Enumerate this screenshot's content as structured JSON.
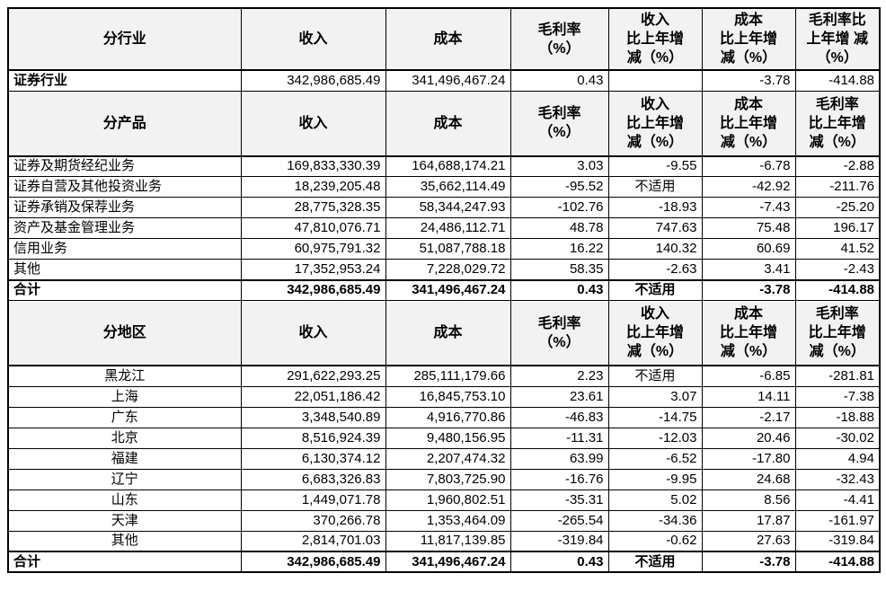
{
  "colors": {
    "header_background": "#f2f2f2",
    "border": "#000000",
    "text": "#000000",
    "page_background": "#ffffff"
  },
  "not_applicable_text": "不适用",
  "sections": [
    {
      "name": "by-industry",
      "header": [
        "分行业",
        "收入",
        "成本",
        "毛利率\n（%）",
        "收入\n比上年增\n减（%）",
        "成本\n比上年增\n减（%）",
        "毛利率比\n上年增 减\n（%）"
      ],
      "rows": [
        {
          "label": "证券行业",
          "align": "left",
          "label_bold": true,
          "row_bold": false,
          "thick_top": true,
          "values": [
            "342,986,685.49",
            "341,496,467.24",
            "0.43",
            "",
            "-3.78",
            "-414.88"
          ]
        }
      ]
    },
    {
      "name": "by-product",
      "header": [
        "分产品",
        "收入",
        "成本",
        "毛利率\n（%）",
        "收入\n比上年增\n减（%）",
        "成本\n比上年增\n减（%）",
        "毛利率\n比上年增\n减（%）"
      ],
      "rows": [
        {
          "label": "证券及期货经纪业务",
          "align": "left",
          "label_bold": false,
          "row_bold": false,
          "thick_top": true,
          "values": [
            "169,833,330.39",
            "164,688,174.21",
            "3.03",
            "-9.55",
            "-6.78",
            "-2.88"
          ]
        },
        {
          "label": "证券自营及其他投资业务",
          "align": "left",
          "label_bold": false,
          "row_bold": false,
          "thick_top": false,
          "values": [
            "18,239,205.48",
            "35,662,114.49",
            "-95.52",
            "不适用",
            "-42.92",
            "-211.76"
          ]
        },
        {
          "label": "证券承销及保荐业务",
          "align": "left",
          "label_bold": false,
          "row_bold": false,
          "thick_top": false,
          "values": [
            "28,775,328.35",
            "58,344,247.93",
            "-102.76",
            "-18.93",
            "-7.43",
            "-25.20"
          ]
        },
        {
          "label": "资产及基金管理业务",
          "align": "left",
          "label_bold": false,
          "row_bold": false,
          "thick_top": false,
          "values": [
            "47,810,076.71",
            "24,486,112.71",
            "48.78",
            "747.63",
            "75.48",
            "196.17"
          ]
        },
        {
          "label": "信用业务",
          "align": "left",
          "label_bold": false,
          "row_bold": false,
          "thick_top": false,
          "values": [
            "60,975,791.32",
            "51,087,788.18",
            "16.22",
            "140.32",
            "60.69",
            "41.52"
          ]
        },
        {
          "label": "其他",
          "align": "left",
          "label_bold": false,
          "row_bold": false,
          "thick_top": false,
          "values": [
            "17,352,953.24",
            "7,228,029.72",
            "58.35",
            "-2.63",
            "3.41",
            "-2.43"
          ]
        },
        {
          "label": "合计",
          "align": "left",
          "label_bold": true,
          "row_bold": true,
          "thick_top": true,
          "values": [
            "342,986,685.49",
            "341,496,467.24",
            "0.43",
            "不适用",
            "-3.78",
            "-414.88"
          ]
        }
      ]
    },
    {
      "name": "by-region",
      "header": [
        "分地区",
        "收入",
        "成本",
        "毛利率\n（%）",
        "收入\n比上年增\n减（%）",
        "成本\n比上年增\n减（%）",
        "毛利率\n比上年增\n减（%）"
      ],
      "rows": [
        {
          "label": "黑龙江",
          "align": "center",
          "label_bold": false,
          "row_bold": false,
          "thick_top": true,
          "values": [
            "291,622,293.25",
            "285,111,179.66",
            "2.23",
            "不适用",
            "-6.85",
            "-281.81"
          ]
        },
        {
          "label": "上海",
          "align": "center",
          "label_bold": false,
          "row_bold": false,
          "thick_top": false,
          "values": [
            "22,051,186.42",
            "16,845,753.10",
            "23.61",
            "3.07",
            "14.11",
            "-7.38"
          ]
        },
        {
          "label": "广东",
          "align": "center",
          "label_bold": false,
          "row_bold": false,
          "thick_top": false,
          "values": [
            "3,348,540.89",
            "4,916,770.86",
            "-46.83",
            "-14.75",
            "-2.17",
            "-18.88"
          ]
        },
        {
          "label": "北京",
          "align": "center",
          "label_bold": false,
          "row_bold": false,
          "thick_top": false,
          "values": [
            "8,516,924.39",
            "9,480,156.95",
            "-11.31",
            "-12.03",
            "20.46",
            "-30.02"
          ]
        },
        {
          "label": "福建",
          "align": "center",
          "label_bold": false,
          "row_bold": false,
          "thick_top": false,
          "values": [
            "6,130,374.12",
            "2,207,474.32",
            "63.99",
            "-6.52",
            "-17.80",
            "4.94"
          ]
        },
        {
          "label": "辽宁",
          "align": "center",
          "label_bold": false,
          "row_bold": false,
          "thick_top": false,
          "values": [
            "6,683,326.83",
            "7,803,725.90",
            "-16.76",
            "-9.95",
            "24.68",
            "-32.43"
          ]
        },
        {
          "label": "山东",
          "align": "center",
          "label_bold": false,
          "row_bold": false,
          "thick_top": false,
          "values": [
            "1,449,071.78",
            "1,960,802.51",
            "-35.31",
            "5.02",
            "8.56",
            "-4.41"
          ]
        },
        {
          "label": "天津",
          "align": "center",
          "label_bold": false,
          "row_bold": false,
          "thick_top": false,
          "values": [
            "370,266.78",
            "1,353,464.09",
            "-265.54",
            "-34.36",
            "17.87",
            "-161.97"
          ]
        },
        {
          "label": "其他",
          "align": "center",
          "label_bold": false,
          "row_bold": false,
          "thick_top": false,
          "values": [
            "2,814,701.03",
            "11,817,139.85",
            "-319.84",
            "-0.62",
            "27.63",
            "-319.84"
          ]
        },
        {
          "label": "合计",
          "align": "left",
          "label_bold": true,
          "row_bold": true,
          "thick_top": true,
          "values": [
            "342,986,685.49",
            "341,496,467.24",
            "0.43",
            "不适用",
            "-3.78",
            "-414.88"
          ]
        }
      ]
    }
  ]
}
